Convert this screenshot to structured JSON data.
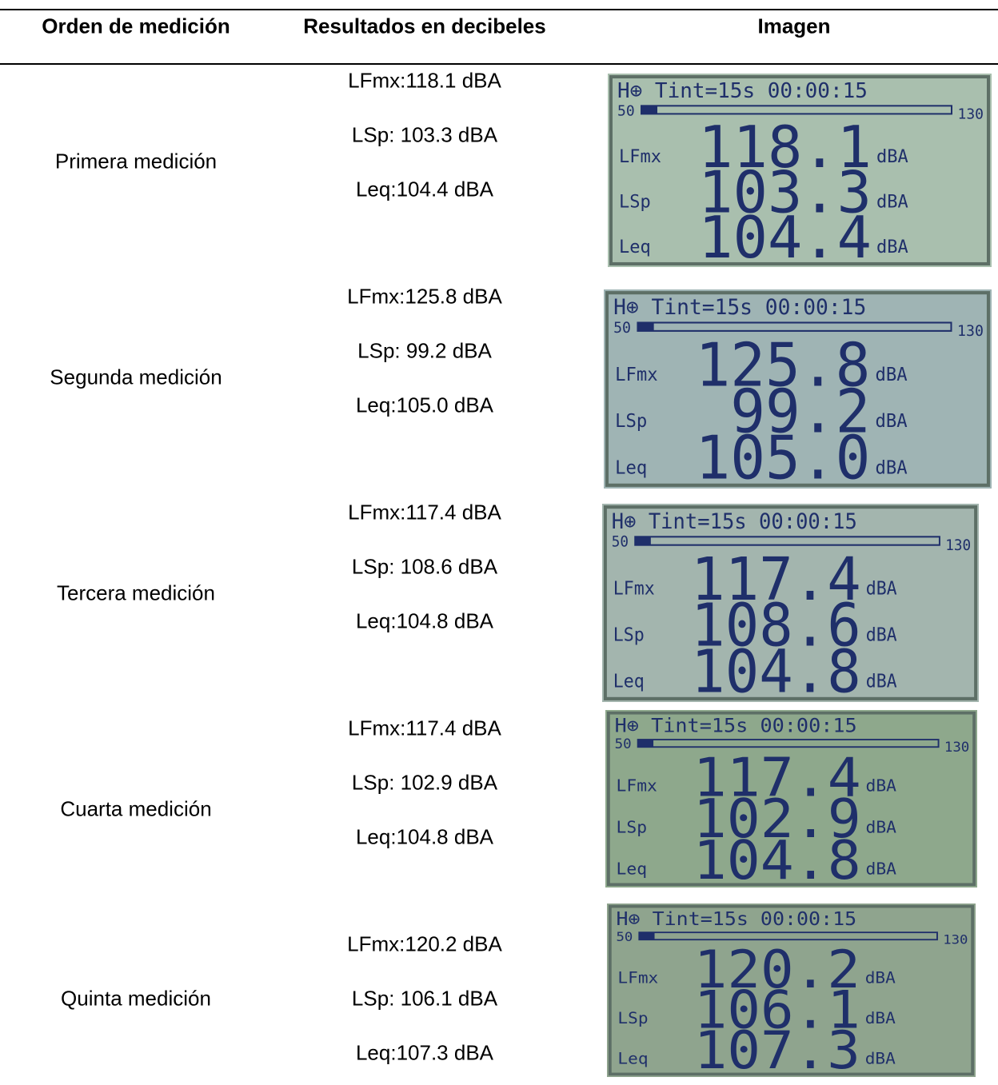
{
  "header": {
    "order": "Orden de medición",
    "results": "Resultados en decibeles",
    "image": "Imagen"
  },
  "rows": [
    {
      "order": "Primera medición",
      "results": [
        "LFmx:118.1 dBA",
        "LSp: 103.3 dBA",
        "Leq:104.4 dBA"
      ],
      "image": {
        "status": "H⊕ Tint=15s 00:00:15",
        "scale_min": "50",
        "scale_max": "130",
        "readings": [
          {
            "label": "LFmx",
            "value": "118.1",
            "unit": "dBA"
          },
          {
            "label": "LSp",
            "value": "103.3",
            "unit": "dBA"
          },
          {
            "label": "Leq",
            "value": "104.4",
            "unit": "dBA"
          }
        ]
      }
    },
    {
      "order": "Segunda medición",
      "results": [
        "LFmx:125.8 dBA",
        "LSp: 99.2 dBA",
        "Leq:105.0 dBA"
      ],
      "image": {
        "status": "H⊕ Tint=15s 00:00:15",
        "scale_min": "50",
        "scale_max": "130",
        "readings": [
          {
            "label": "LFmx",
            "value": "125.8",
            "unit": "dBA"
          },
          {
            "label": "LSp",
            "value": "99.2",
            "unit": "dBA"
          },
          {
            "label": "Leq",
            "value": "105.0",
            "unit": "dBA"
          }
        ]
      }
    },
    {
      "order": "Tercera medición",
      "results": [
        "LFmx:117.4 dBA",
        "LSp: 108.6 dBA",
        "Leq:104.8 dBA"
      ],
      "image": {
        "status": "H⊕ Tint=15s 00:00:15",
        "scale_min": "50",
        "scale_max": "130",
        "readings": [
          {
            "label": "LFmx",
            "value": "117.4",
            "unit": "dBA"
          },
          {
            "label": "LSp",
            "value": "108.6",
            "unit": "dBA"
          },
          {
            "label": "Leq",
            "value": "104.8",
            "unit": "dBA"
          }
        ]
      }
    },
    {
      "order": "Cuarta medición",
      "results": [
        "LFmx:117.4 dBA",
        "LSp: 102.9 dBA",
        "Leq:104.8 dBA"
      ],
      "image": {
        "status": "H⊕ Tint=15s 00:00:15",
        "scale_min": "50",
        "scale_max": "130",
        "readings": [
          {
            "label": "LFmx",
            "value": "117.4",
            "unit": "dBA"
          },
          {
            "label": "LSp",
            "value": "102.9",
            "unit": "dBA"
          },
          {
            "label": "Leq",
            "value": "104.8",
            "unit": "dBA"
          }
        ]
      }
    },
    {
      "order": "Quinta medición",
      "results": [
        "LFmx:120.2 dBA",
        "LSp: 106.1 dBA",
        "Leq:107.3 dBA"
      ],
      "image": {
        "status": "H⊕ Tint=15s 00:00:15",
        "scale_min": "50",
        "scale_max": "130",
        "readings": [
          {
            "label": "LFmx",
            "value": "120.2",
            "unit": "dBA"
          },
          {
            "label": "LSp",
            "value": "106.1",
            "unit": "dBA"
          },
          {
            "label": "Leq",
            "value": "107.3",
            "unit": "dBA"
          }
        ]
      }
    }
  ]
}
